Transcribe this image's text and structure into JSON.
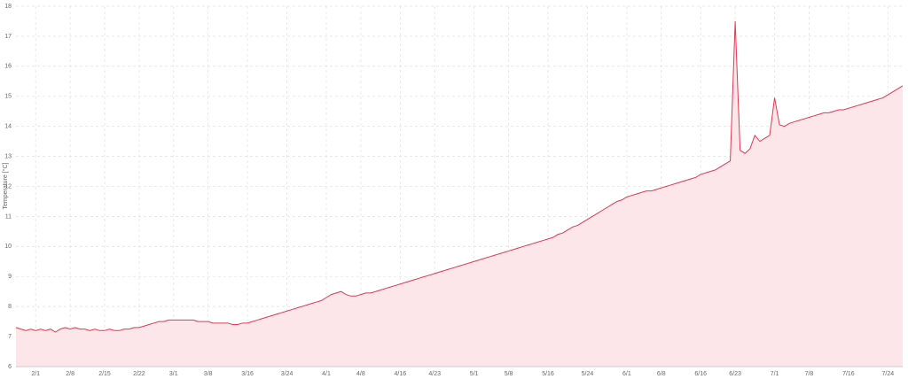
{
  "chart_data": {
    "type": "area",
    "y_label": "Temperature [°C]",
    "color": "#e0394f",
    "fill": "#fde6e9",
    "grid": true,
    "ylim": [
      6,
      18
    ],
    "yticks": [
      6,
      7,
      8,
      9,
      10,
      11,
      12,
      13,
      14,
      15,
      16,
      17,
      18
    ],
    "xticks": [
      "2/1",
      "2/8",
      "2/15",
      "2/22",
      "3/1",
      "3/8",
      "3/16",
      "3/24",
      "4/1",
      "4/8",
      "4/16",
      "4/23",
      "5/1",
      "5/8",
      "5/16",
      "5/24",
      "6/1",
      "6/8",
      "6/16",
      "6/23",
      "7/1",
      "7/8",
      "7/16",
      "7/24"
    ],
    "x": [
      "1/28",
      "1/29",
      "1/30",
      "1/31",
      "2/1",
      "2/2",
      "2/3",
      "2/4",
      "2/5",
      "2/6",
      "2/7",
      "2/8",
      "2/9",
      "2/10",
      "2/11",
      "2/12",
      "2/13",
      "2/14",
      "2/15",
      "2/16",
      "2/17",
      "2/18",
      "2/19",
      "2/20",
      "2/21",
      "2/22",
      "2/23",
      "2/24",
      "2/25",
      "2/26",
      "2/27",
      "2/28",
      "3/1",
      "3/2",
      "3/3",
      "3/4",
      "3/5",
      "3/6",
      "3/7",
      "3/8",
      "3/9",
      "3/10",
      "3/11",
      "3/12",
      "3/13",
      "3/14",
      "3/15",
      "3/16",
      "3/17",
      "3/18",
      "3/19",
      "3/20",
      "3/21",
      "3/22",
      "3/23",
      "3/24",
      "3/25",
      "3/26",
      "3/27",
      "3/28",
      "3/29",
      "3/30",
      "3/31",
      "4/1",
      "4/2",
      "4/3",
      "4/4",
      "4/5",
      "4/6",
      "4/7",
      "4/8",
      "4/9",
      "4/10",
      "4/11",
      "4/12",
      "4/13",
      "4/14",
      "4/15",
      "4/16",
      "4/17",
      "4/18",
      "4/19",
      "4/20",
      "4/21",
      "4/22",
      "4/23",
      "4/24",
      "4/25",
      "4/26",
      "4/27",
      "4/28",
      "4/29",
      "4/30",
      "5/1",
      "5/2",
      "5/3",
      "5/4",
      "5/5",
      "5/6",
      "5/7",
      "5/8",
      "5/9",
      "5/10",
      "5/11",
      "5/12",
      "5/13",
      "5/14",
      "5/15",
      "5/16",
      "5/17",
      "5/18",
      "5/19",
      "5/20",
      "5/21",
      "5/22",
      "5/23",
      "5/24",
      "5/25",
      "5/26",
      "5/27",
      "5/28",
      "5/29",
      "5/30",
      "5/31",
      "6/1",
      "6/2",
      "6/3",
      "6/4",
      "6/5",
      "6/6",
      "6/7",
      "6/8",
      "6/9",
      "6/10",
      "6/11",
      "6/12",
      "6/13",
      "6/14",
      "6/15",
      "6/16",
      "6/17",
      "6/18",
      "6/19",
      "6/20",
      "6/21",
      "6/22",
      "6/23",
      "6/24",
      "6/25",
      "6/26",
      "6/27",
      "6/28",
      "6/29",
      "6/30",
      "7/1",
      "7/2",
      "7/3",
      "7/4",
      "7/5",
      "7/6",
      "7/7",
      "7/8",
      "7/9",
      "7/10",
      "7/11",
      "7/12",
      "7/13",
      "7/14",
      "7/15",
      "7/16",
      "7/17",
      "7/18",
      "7/19",
      "7/20",
      "7/21",
      "7/22",
      "7/23",
      "7/24",
      "7/25",
      "7/26",
      "7/27"
    ],
    "values": [
      7.3,
      7.25,
      7.2,
      7.25,
      7.2,
      7.25,
      7.2,
      7.25,
      7.15,
      7.25,
      7.3,
      7.25,
      7.3,
      7.25,
      7.25,
      7.2,
      7.25,
      7.2,
      7.2,
      7.25,
      7.2,
      7.2,
      7.25,
      7.25,
      7.3,
      7.3,
      7.35,
      7.4,
      7.45,
      7.5,
      7.5,
      7.55,
      7.55,
      7.55,
      7.55,
      7.55,
      7.55,
      7.5,
      7.5,
      7.5,
      7.45,
      7.45,
      7.45,
      7.45,
      7.4,
      7.4,
      7.45,
      7.45,
      7.5,
      7.55,
      7.6,
      7.65,
      7.7,
      7.75,
      7.8,
      7.85,
      7.9,
      7.95,
      8.0,
      8.05,
      8.1,
      8.15,
      8.2,
      8.3,
      8.4,
      8.45,
      8.5,
      8.4,
      8.35,
      8.35,
      8.4,
      8.45,
      8.45,
      8.5,
      8.55,
      8.6,
      8.65,
      8.7,
      8.75,
      8.8,
      8.85,
      8.9,
      8.95,
      9.0,
      9.05,
      9.1,
      9.15,
      9.2,
      9.25,
      9.3,
      9.35,
      9.4,
      9.45,
      9.5,
      9.55,
      9.6,
      9.65,
      9.7,
      9.75,
      9.8,
      9.85,
      9.9,
      9.95,
      10.0,
      10.05,
      10.1,
      10.15,
      10.2,
      10.25,
      10.3,
      10.4,
      10.45,
      10.55,
      10.65,
      10.7,
      10.8,
      10.9,
      11.0,
      11.1,
      11.2,
      11.3,
      11.4,
      11.5,
      11.55,
      11.65,
      11.7,
      11.75,
      11.8,
      11.85,
      11.85,
      11.9,
      11.95,
      12.0,
      12.05,
      12.1,
      12.15,
      12.2,
      12.25,
      12.3,
      12.4,
      12.45,
      12.5,
      12.55,
      12.65,
      12.75,
      12.85,
      17.5,
      13.2,
      13.1,
      13.25,
      13.7,
      13.5,
      13.6,
      13.7,
      14.95,
      14.05,
      14.0,
      14.1,
      14.15,
      14.2,
      14.25,
      14.3,
      14.35,
      14.4,
      14.45,
      14.45,
      14.5,
      14.55,
      14.55,
      14.6,
      14.65,
      14.7,
      14.75,
      14.8,
      14.85,
      14.9,
      14.95,
      15.05,
      15.15,
      15.25,
      15.35
    ]
  }
}
